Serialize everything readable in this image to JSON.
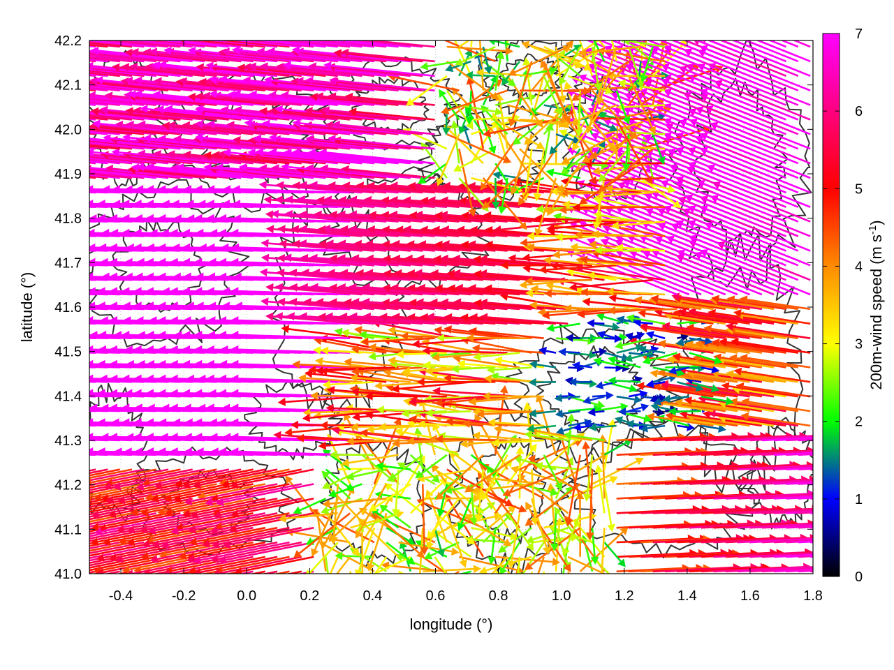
{
  "chart_data": {
    "type": "vector-field",
    "xlabel": "longitude (°)",
    "ylabel": "latitude (°)",
    "xlim": [
      -0.5,
      1.8
    ],
    "ylim": [
      41.0,
      42.2
    ],
    "x_ticks": [
      "-0.4",
      "-0.2",
      "0.0",
      "0.2",
      "0.4",
      "0.6",
      "0.8",
      "1.0",
      "1.2",
      "1.4",
      "1.6",
      "1.8"
    ],
    "y_ticks": [
      "41.0",
      "41.1",
      "41.2",
      "41.3",
      "41.4",
      "41.5",
      "41.6",
      "41.7",
      "41.8",
      "41.9",
      "42.0",
      "42.1",
      "42.2"
    ],
    "grid": "dotted",
    "colorbar": {
      "label": "200m-wind speed (m s-1)",
      "label_main": "200m-wind speed (m s",
      "label_sup": "-1",
      "label_end": ")",
      "range": [
        0,
        7
      ],
      "ticks": [
        "0",
        "1",
        "2",
        "3",
        "4",
        "5",
        "6",
        "7"
      ],
      "colors": [
        "#000000",
        "#0000ff",
        "#00ff00",
        "#ffff00",
        "#ff8c00",
        "#ff0000",
        "#ff00ff"
      ]
    },
    "wind_field": {
      "u_unit": "m/s",
      "regions": [
        {
          "lon": [
            -0.5,
            0.3
          ],
          "lat": [
            41.25,
            41.85
          ],
          "speed": 7,
          "direction": "westward"
        },
        {
          "lon": [
            0.3,
            1.0
          ],
          "lat": [
            41.55,
            41.85
          ],
          "speed": 6.5,
          "direction": "westward"
        },
        {
          "lon": [
            -0.5,
            0.2
          ],
          "lat": [
            41.0,
            41.25
          ],
          "speed": 4.5,
          "direction": "west-southwest"
        },
        {
          "lon": [
            0.6,
            1.1
          ],
          "lat": [
            41.3,
            41.5
          ],
          "speed": 2.5,
          "direction": "westward"
        },
        {
          "lon": [
            1.1,
            1.5
          ],
          "lat": [
            41.35,
            41.55
          ],
          "speed": 1.2,
          "direction": "variable"
        },
        {
          "lon": [
            1.2,
            1.8
          ],
          "lat": [
            41.0,
            41.3
          ],
          "speed": 4.5,
          "direction": "eastward"
        },
        {
          "lon": [
            1.4,
            1.8
          ],
          "lat": [
            41.7,
            42.1
          ],
          "speed": 7,
          "direction": "west-northwest"
        },
        {
          "lon": [
            0.6,
            1.2
          ],
          "lat": [
            41.9,
            42.2
          ],
          "speed": 3,
          "direction": "variable"
        }
      ]
    }
  }
}
